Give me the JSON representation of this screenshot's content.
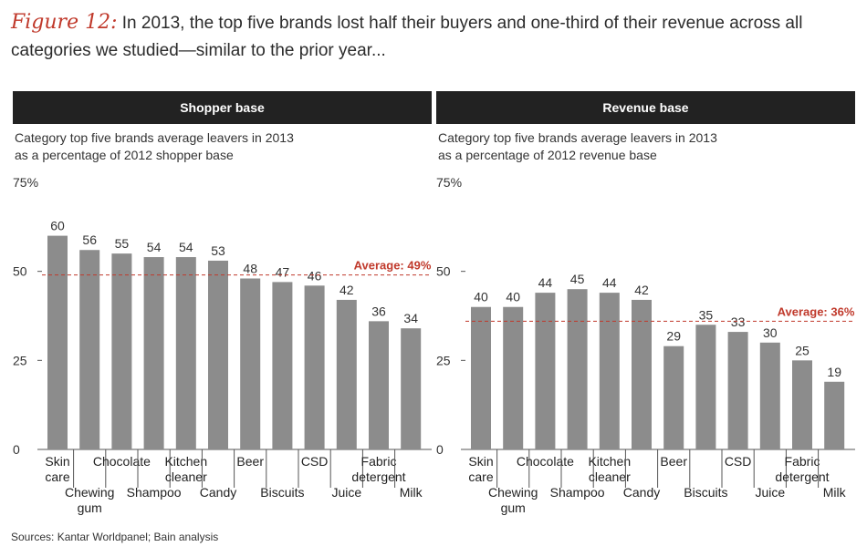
{
  "figure": {
    "label": "Figure 12:",
    "title": "In 2013, the top five brands lost half their buyers and one-third of their revenue across all categories we studied—similar to the prior year..."
  },
  "source": "Sources: Kantar Worldpanel; Bain analysis",
  "colors": {
    "bar": "#8c8c8c",
    "average_line": "#c0392b",
    "header_bg": "#222222"
  },
  "panels": [
    {
      "header": "Shopper base",
      "subtitle_line1": "Category top five brands average leavers in 2013",
      "subtitle_line2": "as a percentage of 2012 shopper base"
    },
    {
      "header": "Revenue base",
      "subtitle_line1": "Category top five brands average leavers in 2013",
      "subtitle_line2": "as a percentage of 2012 revenue base"
    }
  ],
  "chart_data": [
    {
      "type": "bar",
      "title": "Shopper base",
      "categories": [
        "Skin care",
        "Chewing gum",
        "Chocolate",
        "Shampoo",
        "Kitchen cleaner",
        "Candy",
        "Beer",
        "Biscuits",
        "CSD",
        "Juice",
        "Fabric detergent",
        "Milk"
      ],
      "values": [
        60,
        56,
        55,
        54,
        54,
        53,
        48,
        47,
        46,
        42,
        36,
        34
      ],
      "yticks": [
        "0",
        "25",
        "50",
        "75%"
      ],
      "ylim": [
        0,
        75
      ],
      "average": {
        "value": 49,
        "label": "Average: 49%"
      }
    },
    {
      "type": "bar",
      "title": "Revenue base",
      "categories": [
        "Skin care",
        "Chewing gum",
        "Chocolate",
        "Shampoo",
        "Kitchen cleaner",
        "Candy",
        "Beer",
        "Biscuits",
        "CSD",
        "Juice",
        "Fabric detergent",
        "Milk"
      ],
      "values": [
        40,
        40,
        44,
        45,
        44,
        42,
        29,
        35,
        33,
        30,
        25,
        19
      ],
      "yticks": [
        "0",
        "25",
        "50",
        "75%"
      ],
      "ylim": [
        0,
        75
      ],
      "average": {
        "value": 36,
        "label": "Average: 36%"
      }
    }
  ]
}
